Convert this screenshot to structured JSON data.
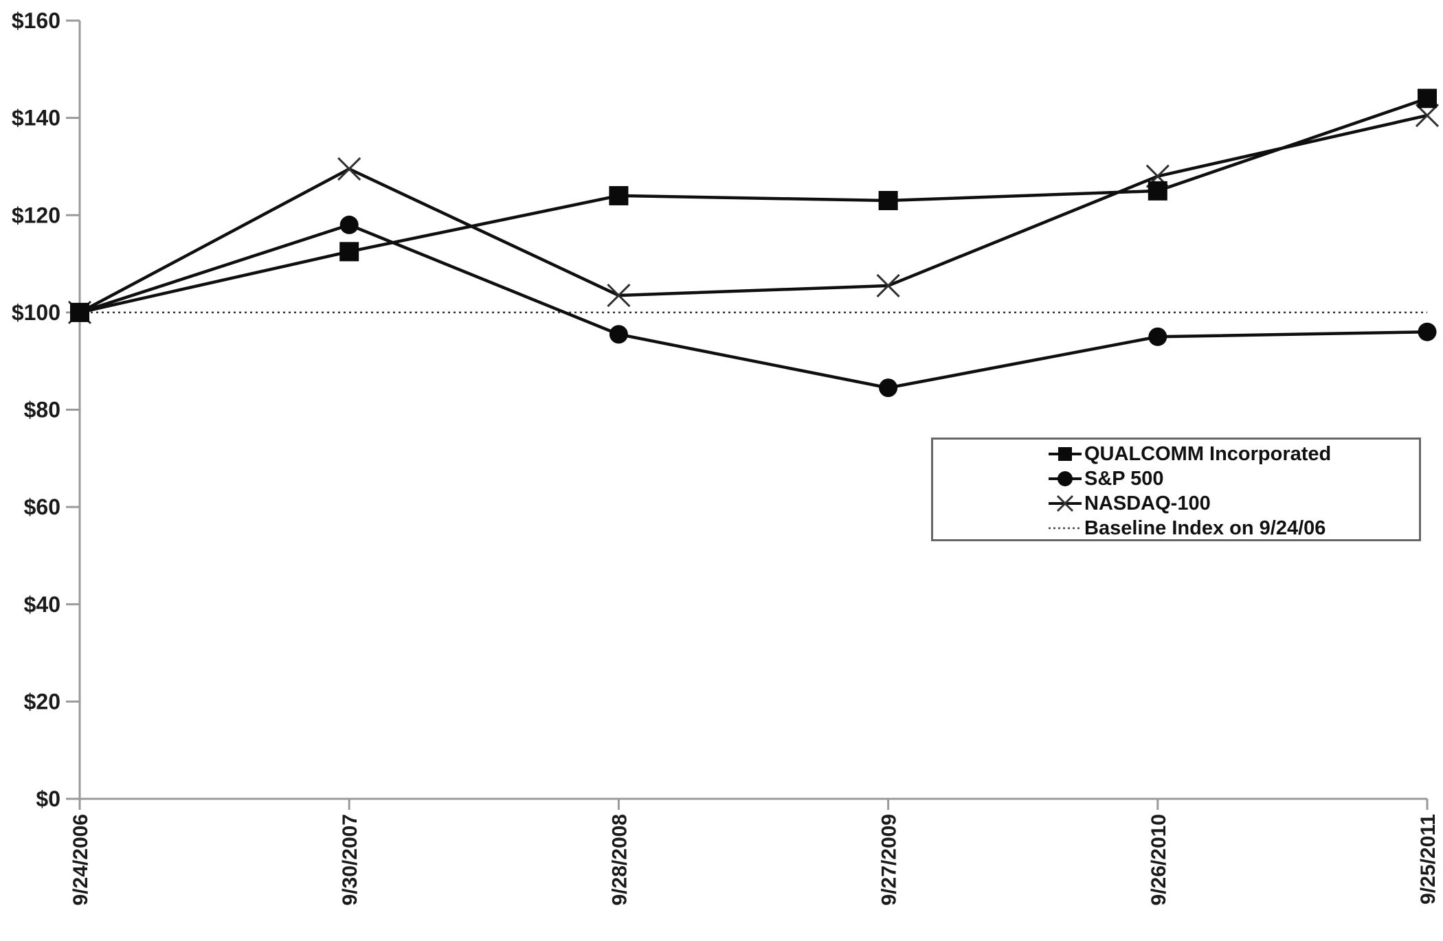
{
  "chart_data": {
    "type": "line",
    "title": "",
    "xlabel": "",
    "ylabel": "",
    "x_categories": [
      "9/24/2006",
      "9/30/2007",
      "9/28/2008",
      "9/27/2009",
      "9/26/2010",
      "9/25/2011"
    ],
    "y_tick_labels": [
      "$0",
      "$20",
      "$40",
      "$60",
      "$80",
      "$100",
      "$120",
      "$140",
      "$160"
    ],
    "y_tick_values": [
      0,
      20,
      40,
      60,
      80,
      100,
      120,
      140,
      160
    ],
    "ylim": [
      0,
      160
    ],
    "grid": false,
    "legend_position": "middle-right",
    "series": [
      {
        "name": "QUALCOMM Incorporated",
        "marker": "square",
        "line": "solid",
        "values": [
          100,
          112.5,
          124,
          123,
          125,
          144
        ]
      },
      {
        "name": "S&P 500",
        "marker": "circle",
        "line": "solid",
        "values": [
          100,
          118,
          95.5,
          84.5,
          95,
          96
        ]
      },
      {
        "name": "NASDAQ-100",
        "marker": "x",
        "line": "solid",
        "values": [
          100,
          129.5,
          103.5,
          105.5,
          128,
          140.5
        ]
      },
      {
        "name": "Baseline Index on 9/24/06",
        "marker": "none",
        "line": "dotted",
        "values": [
          100,
          100,
          100,
          100,
          100,
          100
        ]
      }
    ],
    "colors": {
      "series_line": "#0f0f0f",
      "marker_fill": "#0a0a0a",
      "x_marker_stroke": "#2f2f2f",
      "baseline": "#333333",
      "axis": "#9a9a9a",
      "text": "#1a1a1a",
      "legend_border": "#666666",
      "background": "#ffffff"
    }
  }
}
